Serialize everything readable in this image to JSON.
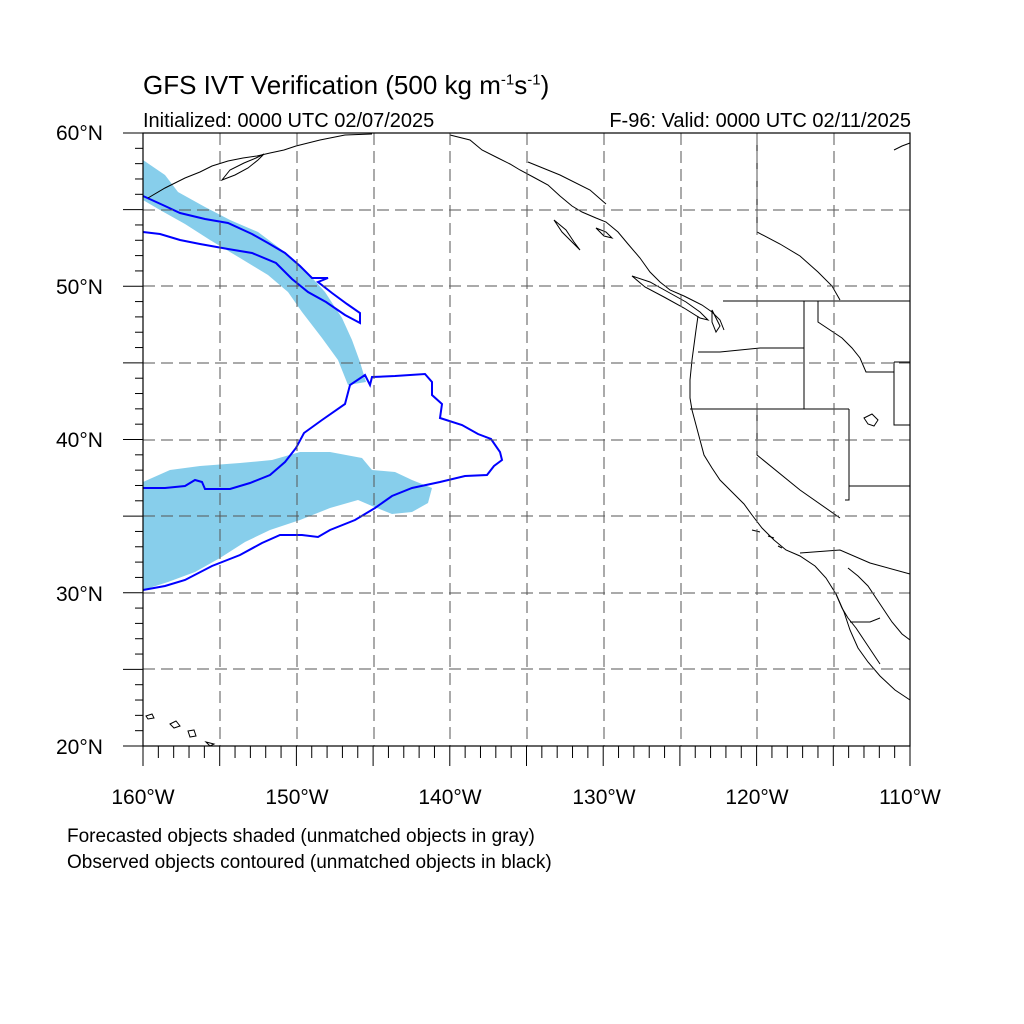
{
  "title_main": "GFS IVT Verification (500 kg m",
  "title_sup1": "-1",
  "title_mid": "s",
  "title_sup2": "-1",
  "title_end": ")",
  "initialized": "Initialized: 0000 UTC 02/07/2025",
  "valid": "F-96: Valid: 0000 UTC 02/11/2025",
  "lat_labels": [
    "60°N",
    "50°N",
    "40°N",
    "30°N",
    "20°N"
  ],
  "lon_labels": [
    "160°W",
    "150°W",
    "140°W",
    "130°W",
    "120°W",
    "110°W"
  ],
  "caption_forecast": "Forecasted objects shaded (unmatched objects in gray)",
  "caption_observed": "Observed objects contoured (unmatched objects in black)",
  "colors": {
    "forecast_fill": "#87ceeb",
    "observed_contour": "#0000ff",
    "grid": "#555555",
    "coast": "#000000"
  },
  "map_extent": {
    "lon_min": -160,
    "lon_max": -110,
    "lat_min": 20,
    "lat_max": 60
  }
}
